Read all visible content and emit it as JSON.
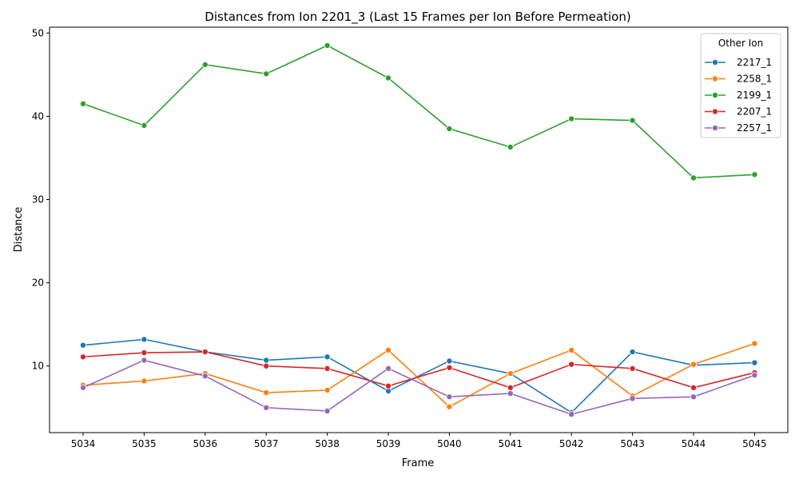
{
  "chart_data": {
    "type": "line",
    "title": "Distances from Ion 2201_3 (Last 15 Frames per Ion Before Permeation)",
    "xlabel": "Frame",
    "ylabel": "Distance",
    "x": [
      5034,
      5035,
      5036,
      5037,
      5038,
      5039,
      5040,
      5041,
      5042,
      5043,
      5044,
      5045
    ],
    "xticks": [
      "5034",
      "5035",
      "5036",
      "5037",
      "5038",
      "5039",
      "5040",
      "5041",
      "5042",
      "5043",
      "5044",
      "5045"
    ],
    "ylim": [
      2.0,
      50.7
    ],
    "yticks": [
      10,
      20,
      30,
      40,
      50
    ],
    "grid": false,
    "legend": {
      "title": "Other Ion",
      "placement": "top-right"
    },
    "series": [
      {
        "name": "2217_1",
        "color": "#1f77b4",
        "values": [
          12.5,
          13.2,
          11.7,
          10.7,
          11.1,
          7.0,
          10.6,
          9.1,
          4.4,
          11.7,
          10.1,
          10.4
        ]
      },
      {
        "name": "2258_1",
        "color": "#ff7f0e",
        "values": [
          7.7,
          8.2,
          9.1,
          6.8,
          7.1,
          11.9,
          5.1,
          9.1,
          11.9,
          6.4,
          10.2,
          12.7
        ]
      },
      {
        "name": "2199_1",
        "color": "#2ca02c",
        "values": [
          41.5,
          38.9,
          46.2,
          45.1,
          48.5,
          44.6,
          38.5,
          36.3,
          39.7,
          39.5,
          32.6,
          33.0
        ]
      },
      {
        "name": "2207_1",
        "color": "#d62728",
        "values": [
          11.1,
          11.6,
          11.7,
          10.0,
          9.7,
          7.6,
          9.8,
          7.4,
          10.2,
          9.7,
          7.4,
          9.2
        ]
      },
      {
        "name": "2257_1",
        "color": "#9467bd",
        "values": [
          7.4,
          10.7,
          8.8,
          5.0,
          4.6,
          9.7,
          6.3,
          6.7,
          4.2,
          6.1,
          6.3,
          8.9
        ]
      }
    ]
  }
}
